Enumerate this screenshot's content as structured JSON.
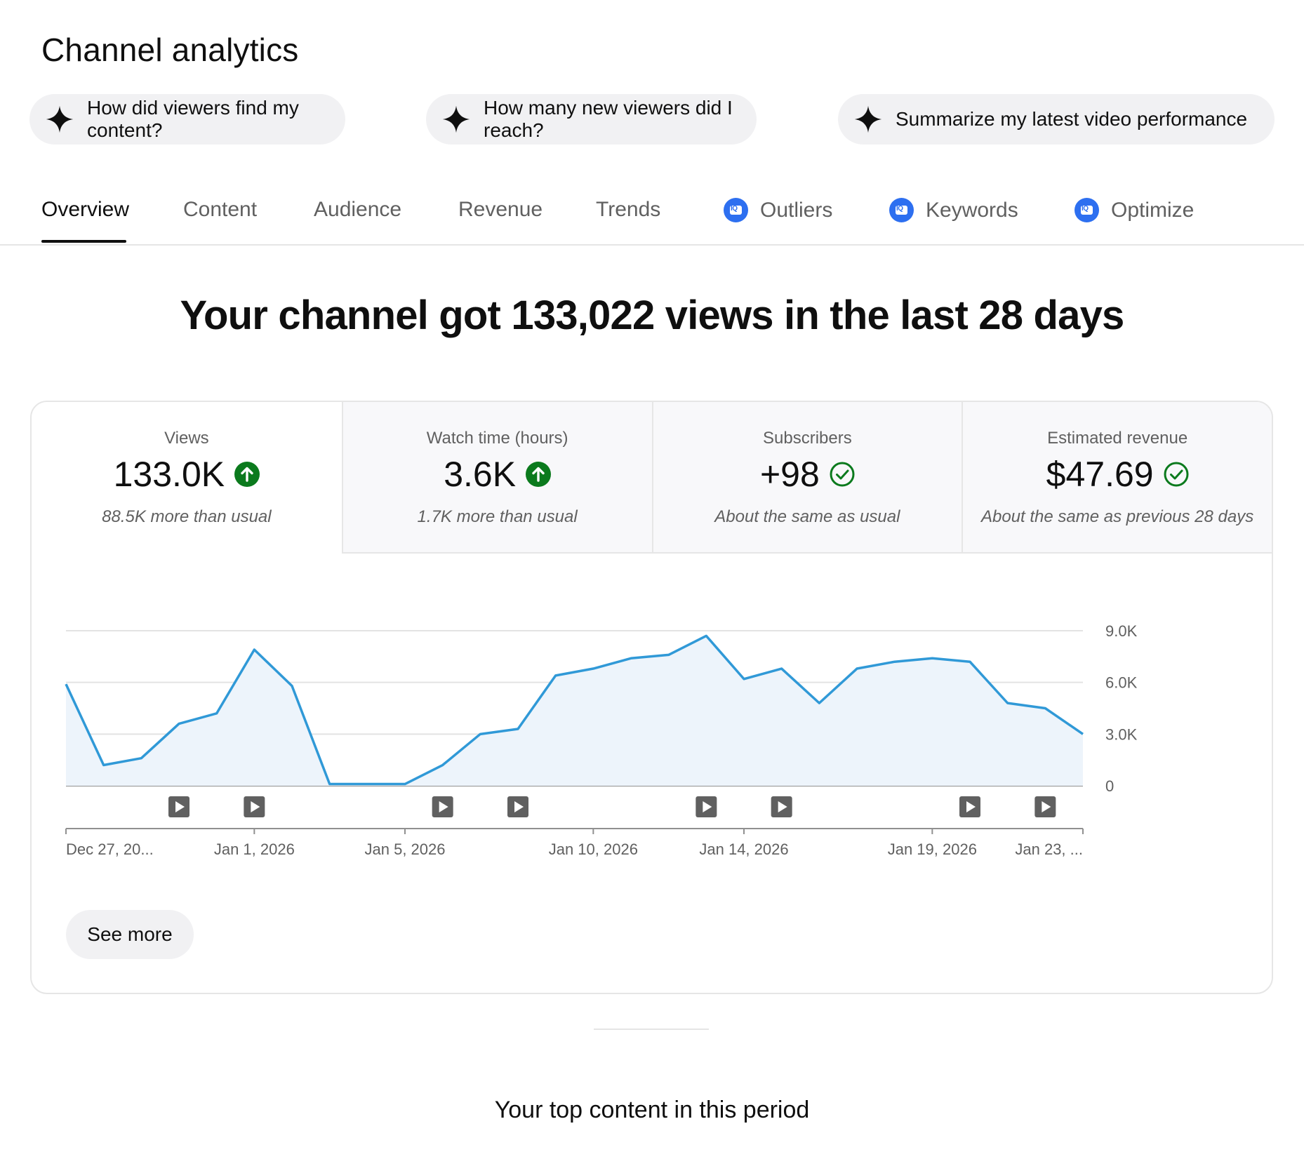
{
  "page": {
    "title": "Channel analytics"
  },
  "chips": [
    {
      "label": "How did viewers find my content?",
      "icon": "sparkle-icon"
    },
    {
      "label": "How many new viewers did I reach?",
      "icon": "sparkle-icon"
    },
    {
      "label": "Summarize my latest video performance",
      "icon": "sparkle-icon"
    }
  ],
  "tabs": [
    {
      "label": "Overview",
      "active": true
    },
    {
      "label": "Content"
    },
    {
      "label": "Audience"
    },
    {
      "label": "Revenue"
    },
    {
      "label": "Trends"
    },
    {
      "label": "Outliers",
      "icon": "vidiq-icon"
    },
    {
      "label": "Keywords",
      "icon": "vidiq-icon"
    },
    {
      "label": "Optimize",
      "icon": "vidiq-icon"
    }
  ],
  "iq_badge": "IQ",
  "headline": "Your channel got 133,022 views in the last 28 days",
  "metrics": [
    {
      "label": "Views",
      "value": "133.0K",
      "status": "up",
      "note": "88.5K more than usual"
    },
    {
      "label": "Watch time (hours)",
      "value": "3.6K",
      "status": "up",
      "note": "1.7K more than usual"
    },
    {
      "label": "Subscribers",
      "value": "+98",
      "status": "same",
      "note": "About the same as usual"
    },
    {
      "label": "Estimated revenue",
      "value": "$47.69",
      "status": "same",
      "note": "About the same as previous 28 days"
    }
  ],
  "colors": {
    "line": "#3099d7",
    "fill": "#edf4fb",
    "up": "#0b7a1d",
    "same": "#0b7a1d"
  },
  "chart_data": {
    "type": "area",
    "series": [
      {
        "name": "Views",
        "values": [
          5900,
          1200,
          1600,
          3600,
          4200,
          7900,
          5800,
          100,
          100,
          100,
          1200,
          3000,
          3300,
          6400,
          6800,
          7400,
          7600,
          8700,
          6200,
          6800,
          4800,
          6800,
          7200,
          7400,
          7200,
          4800,
          4500,
          3000
        ]
      }
    ],
    "ylim": [
      0,
      9000
    ],
    "yticks": [
      {
        "value": 9000,
        "label": "9.0K"
      },
      {
        "value": 6000,
        "label": "6.0K"
      },
      {
        "value": 3000,
        "label": "3.0K"
      },
      {
        "value": 0,
        "label": "0"
      }
    ],
    "xticks": [
      {
        "index": 0,
        "label": "Dec 27, 20..."
      },
      {
        "index": 5,
        "label": "Jan 1, 2026"
      },
      {
        "index": 9,
        "label": "Jan 5, 2026"
      },
      {
        "index": 14,
        "label": "Jan 10, 2026"
      },
      {
        "index": 18,
        "label": "Jan 14, 2026"
      },
      {
        "index": 23,
        "label": "Jan 19, 2026"
      },
      {
        "index": 27,
        "label": "Jan 23, ..."
      }
    ],
    "video_markers": [
      3,
      5,
      10,
      12,
      17,
      19,
      24,
      26
    ],
    "xlabel": "",
    "ylabel": ""
  },
  "actions": {
    "see_more": "See more"
  },
  "top_content": {
    "title": "Your top content in this period"
  }
}
